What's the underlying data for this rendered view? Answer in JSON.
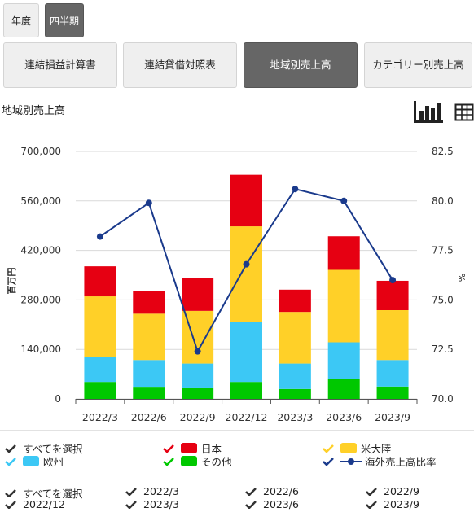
{
  "period_tabs": [
    {
      "label": "年度",
      "active": false
    },
    {
      "label": "四半期",
      "active": true
    }
  ],
  "report_tabs": [
    {
      "label": "連結損益計算書",
      "active": false
    },
    {
      "label": "連結貸借対照表",
      "active": false
    },
    {
      "label": "地域別売上高",
      "active": true
    },
    {
      "label": "カテゴリー別売上高",
      "active": false
    }
  ],
  "chart_title": "地域別売上高",
  "chart_toolbar": {
    "bar_icon": "bar-chart-icon",
    "table_icon": "table-icon"
  },
  "colors": {
    "japan": "#e60012",
    "americas": "#ffd028",
    "europe": "#3cc8f5",
    "other": "#00c800",
    "ratio": "#1a3a8c",
    "grid": "#d9d9d9"
  },
  "chart_data": {
    "type": "bar",
    "stacked": true,
    "categories": [
      "2022/3",
      "2022/6",
      "2022/9",
      "2022/12",
      "2023/3",
      "2023/6",
      "2023/9"
    ],
    "ylabel": "百万円",
    "y2label": "%",
    "ylim": [
      0,
      700000
    ],
    "y2lim": [
      70.0,
      82.5
    ],
    "yticks": [
      "0",
      "140,000",
      "280,000",
      "420,000",
      "560,000",
      "700,000"
    ],
    "y2ticks": [
      "70.0",
      "72.5",
      "75.0",
      "77.5",
      "80.0",
      "82.5"
    ],
    "series": [
      {
        "name": "その他",
        "key": "other",
        "values": [
          48000,
          32000,
          30000,
          48000,
          28000,
          57000,
          35000
        ]
      },
      {
        "name": "欧州",
        "key": "europe",
        "values": [
          70000,
          78000,
          70000,
          170000,
          72000,
          103000,
          75000
        ]
      },
      {
        "name": "米大陸",
        "key": "americas",
        "values": [
          172000,
          131000,
          149000,
          270000,
          146000,
          205000,
          141000
        ]
      },
      {
        "name": "日本",
        "key": "japan",
        "values": [
          85000,
          65000,
          94000,
          146000,
          63000,
          95000,
          83000
        ]
      }
    ],
    "line": {
      "name": "海外売上高比率",
      "values": [
        78.2,
        79.9,
        72.4,
        76.8,
        80.6,
        80.0,
        76.0
      ]
    }
  },
  "legend": {
    "select_all": "すべてを選択",
    "items": [
      {
        "label": "日本",
        "key": "japan",
        "check_color": "#e60012"
      },
      {
        "label": "米大陸",
        "key": "americas",
        "check_color": "#ffd028"
      },
      {
        "label": "欧州",
        "key": "europe",
        "check_color": "#3cc8f5"
      },
      {
        "label": "その他",
        "key": "other",
        "check_color": "#00c800"
      },
      {
        "label": "海外売上高比率",
        "key": "ratio",
        "check_color": "#1a3a8c"
      }
    ]
  },
  "period_filter": {
    "select_all": "すべてを選択",
    "items": [
      "2022/3",
      "2022/6",
      "2022/9",
      "2022/12",
      "2023/3",
      "2023/6",
      "2023/9"
    ]
  }
}
